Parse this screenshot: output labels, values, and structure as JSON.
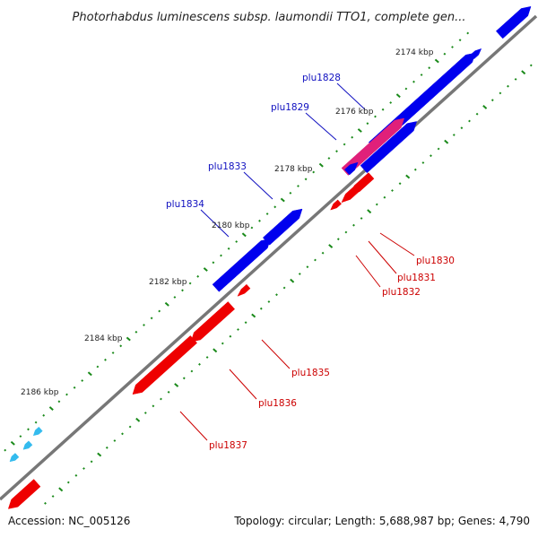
{
  "title": "Photorhabdus luminescens subsp. laumondii TTO1, complete gen...",
  "footer": {
    "accession": "Accession: NC_005126",
    "summary": "Topology: circular; Length: 5,688,987 bp; Genes: 4,790"
  },
  "colors": {
    "backbone": "#777777",
    "forward_strand": "#0000ee",
    "forward_label": "#1010c0",
    "reverse_strand": "#ee0000",
    "reverse_label": "#cc0000",
    "highlighted_gene": "#e0207a",
    "tick": "#1a8a1a",
    "small_feature": "#33bbee"
  },
  "position_markers": [
    "2174 kbp",
    "2176 kbp",
    "2178 kbp",
    "2180 kbp",
    "2182 kbp",
    "2184 kbp",
    "2186 kbp"
  ],
  "forward_gene_labels": [
    "plu1828",
    "plu1829",
    "plu1833",
    "plu1834"
  ],
  "reverse_gene_labels": [
    "plu1830",
    "plu1831",
    "plu1832",
    "plu1835",
    "plu1836",
    "plu1837"
  ]
}
